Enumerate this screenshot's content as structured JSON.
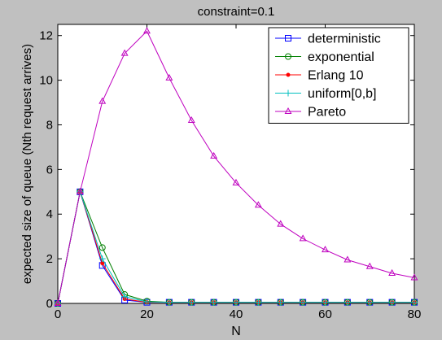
{
  "chart_data": {
    "type": "line",
    "title": "constraint=0.1",
    "xlabel": "N",
    "ylabel": "expected size of queue (Nth request arrives)",
    "xlim": [
      0,
      80
    ],
    "ylim": [
      0,
      12.5
    ],
    "xticks": [
      0,
      20,
      40,
      60,
      80
    ],
    "yticks": [
      0,
      2,
      4,
      6,
      8,
      10,
      12
    ],
    "grid": false,
    "legend_position": "top-right",
    "x": [
      0,
      5,
      10,
      15,
      20,
      25,
      30,
      35,
      40,
      45,
      50,
      55,
      60,
      65,
      70,
      75,
      80
    ],
    "series": [
      {
        "name": "deterministic",
        "color": "#0000ff",
        "marker": "square",
        "values": [
          0,
          5.0,
          1.7,
          0.15,
          0.05,
          0.05,
          0.05,
          0.05,
          0.05,
          0.05,
          0.05,
          0.05,
          0.05,
          0.05,
          0.05,
          0.05,
          0.05
        ]
      },
      {
        "name": "exponential",
        "color": "#008000",
        "marker": "circle",
        "values": [
          0,
          5.0,
          2.5,
          0.4,
          0.1,
          0.05,
          0.05,
          0.05,
          0.05,
          0.05,
          0.05,
          0.05,
          0.05,
          0.05,
          0.05,
          0.05,
          0.05
        ]
      },
      {
        "name": "Erlang 10",
        "color": "#ff0000",
        "marker": "dot",
        "values": [
          0,
          5.0,
          1.8,
          0.2,
          0.05,
          0.05,
          0.05,
          0.05,
          0.05,
          0.05,
          0.05,
          0.05,
          0.05,
          0.05,
          0.05,
          0.05,
          0.05
        ]
      },
      {
        "name": "uniform[0,b]",
        "color": "#00bfbf",
        "marker": "plus",
        "values": [
          0,
          5.0,
          2.0,
          0.3,
          0.07,
          0.05,
          0.05,
          0.05,
          0.05,
          0.05,
          0.05,
          0.05,
          0.05,
          0.05,
          0.05,
          0.05,
          0.05
        ]
      },
      {
        "name": "Pareto",
        "color": "#bf00bf",
        "marker": "triangle",
        "values": [
          0,
          5.0,
          9.05,
          11.2,
          12.2,
          10.1,
          8.2,
          6.6,
          5.4,
          4.4,
          3.55,
          2.9,
          2.4,
          1.95,
          1.65,
          1.35,
          1.15
        ]
      }
    ]
  }
}
